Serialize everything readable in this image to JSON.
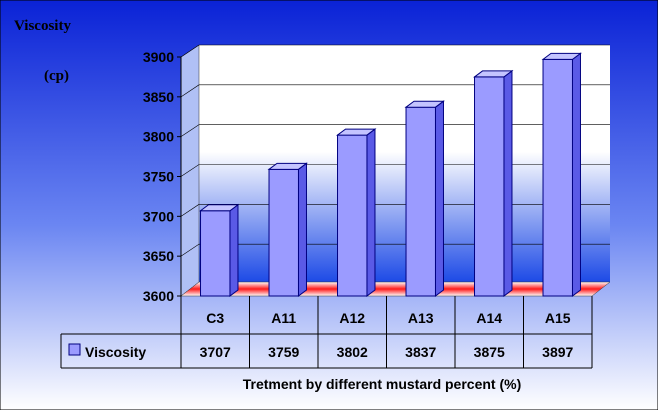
{
  "chart_data": {
    "type": "bar",
    "title": "",
    "ylabel": [
      "Viscosity",
      "(cp)"
    ],
    "xlabel": "Tretment by different mustard percent (%)",
    "categories": [
      "C3",
      "A11",
      "A12",
      "A13",
      "A14",
      "A15"
    ],
    "series": [
      {
        "name": "Viscosity",
        "values": [
          3707,
          3759,
          3802,
          3837,
          3875,
          3897
        ]
      }
    ],
    "ylim": [
      3600,
      3900
    ],
    "yticks": [
      3600,
      3650,
      3700,
      3750,
      3800,
      3850,
      3900
    ],
    "grid": true,
    "legend": "data-table-left",
    "data_table": true,
    "colors": {
      "background_top": "#0a2bdc",
      "background_bottom": "#ffffff",
      "bar_front": "#9b9bff",
      "bar_side": "#5a5ae6",
      "bar_top": "#c4c4ff",
      "bar_stroke": "#000080",
      "floor": "#e30000",
      "back_wall": "#2f5cf0"
    }
  }
}
